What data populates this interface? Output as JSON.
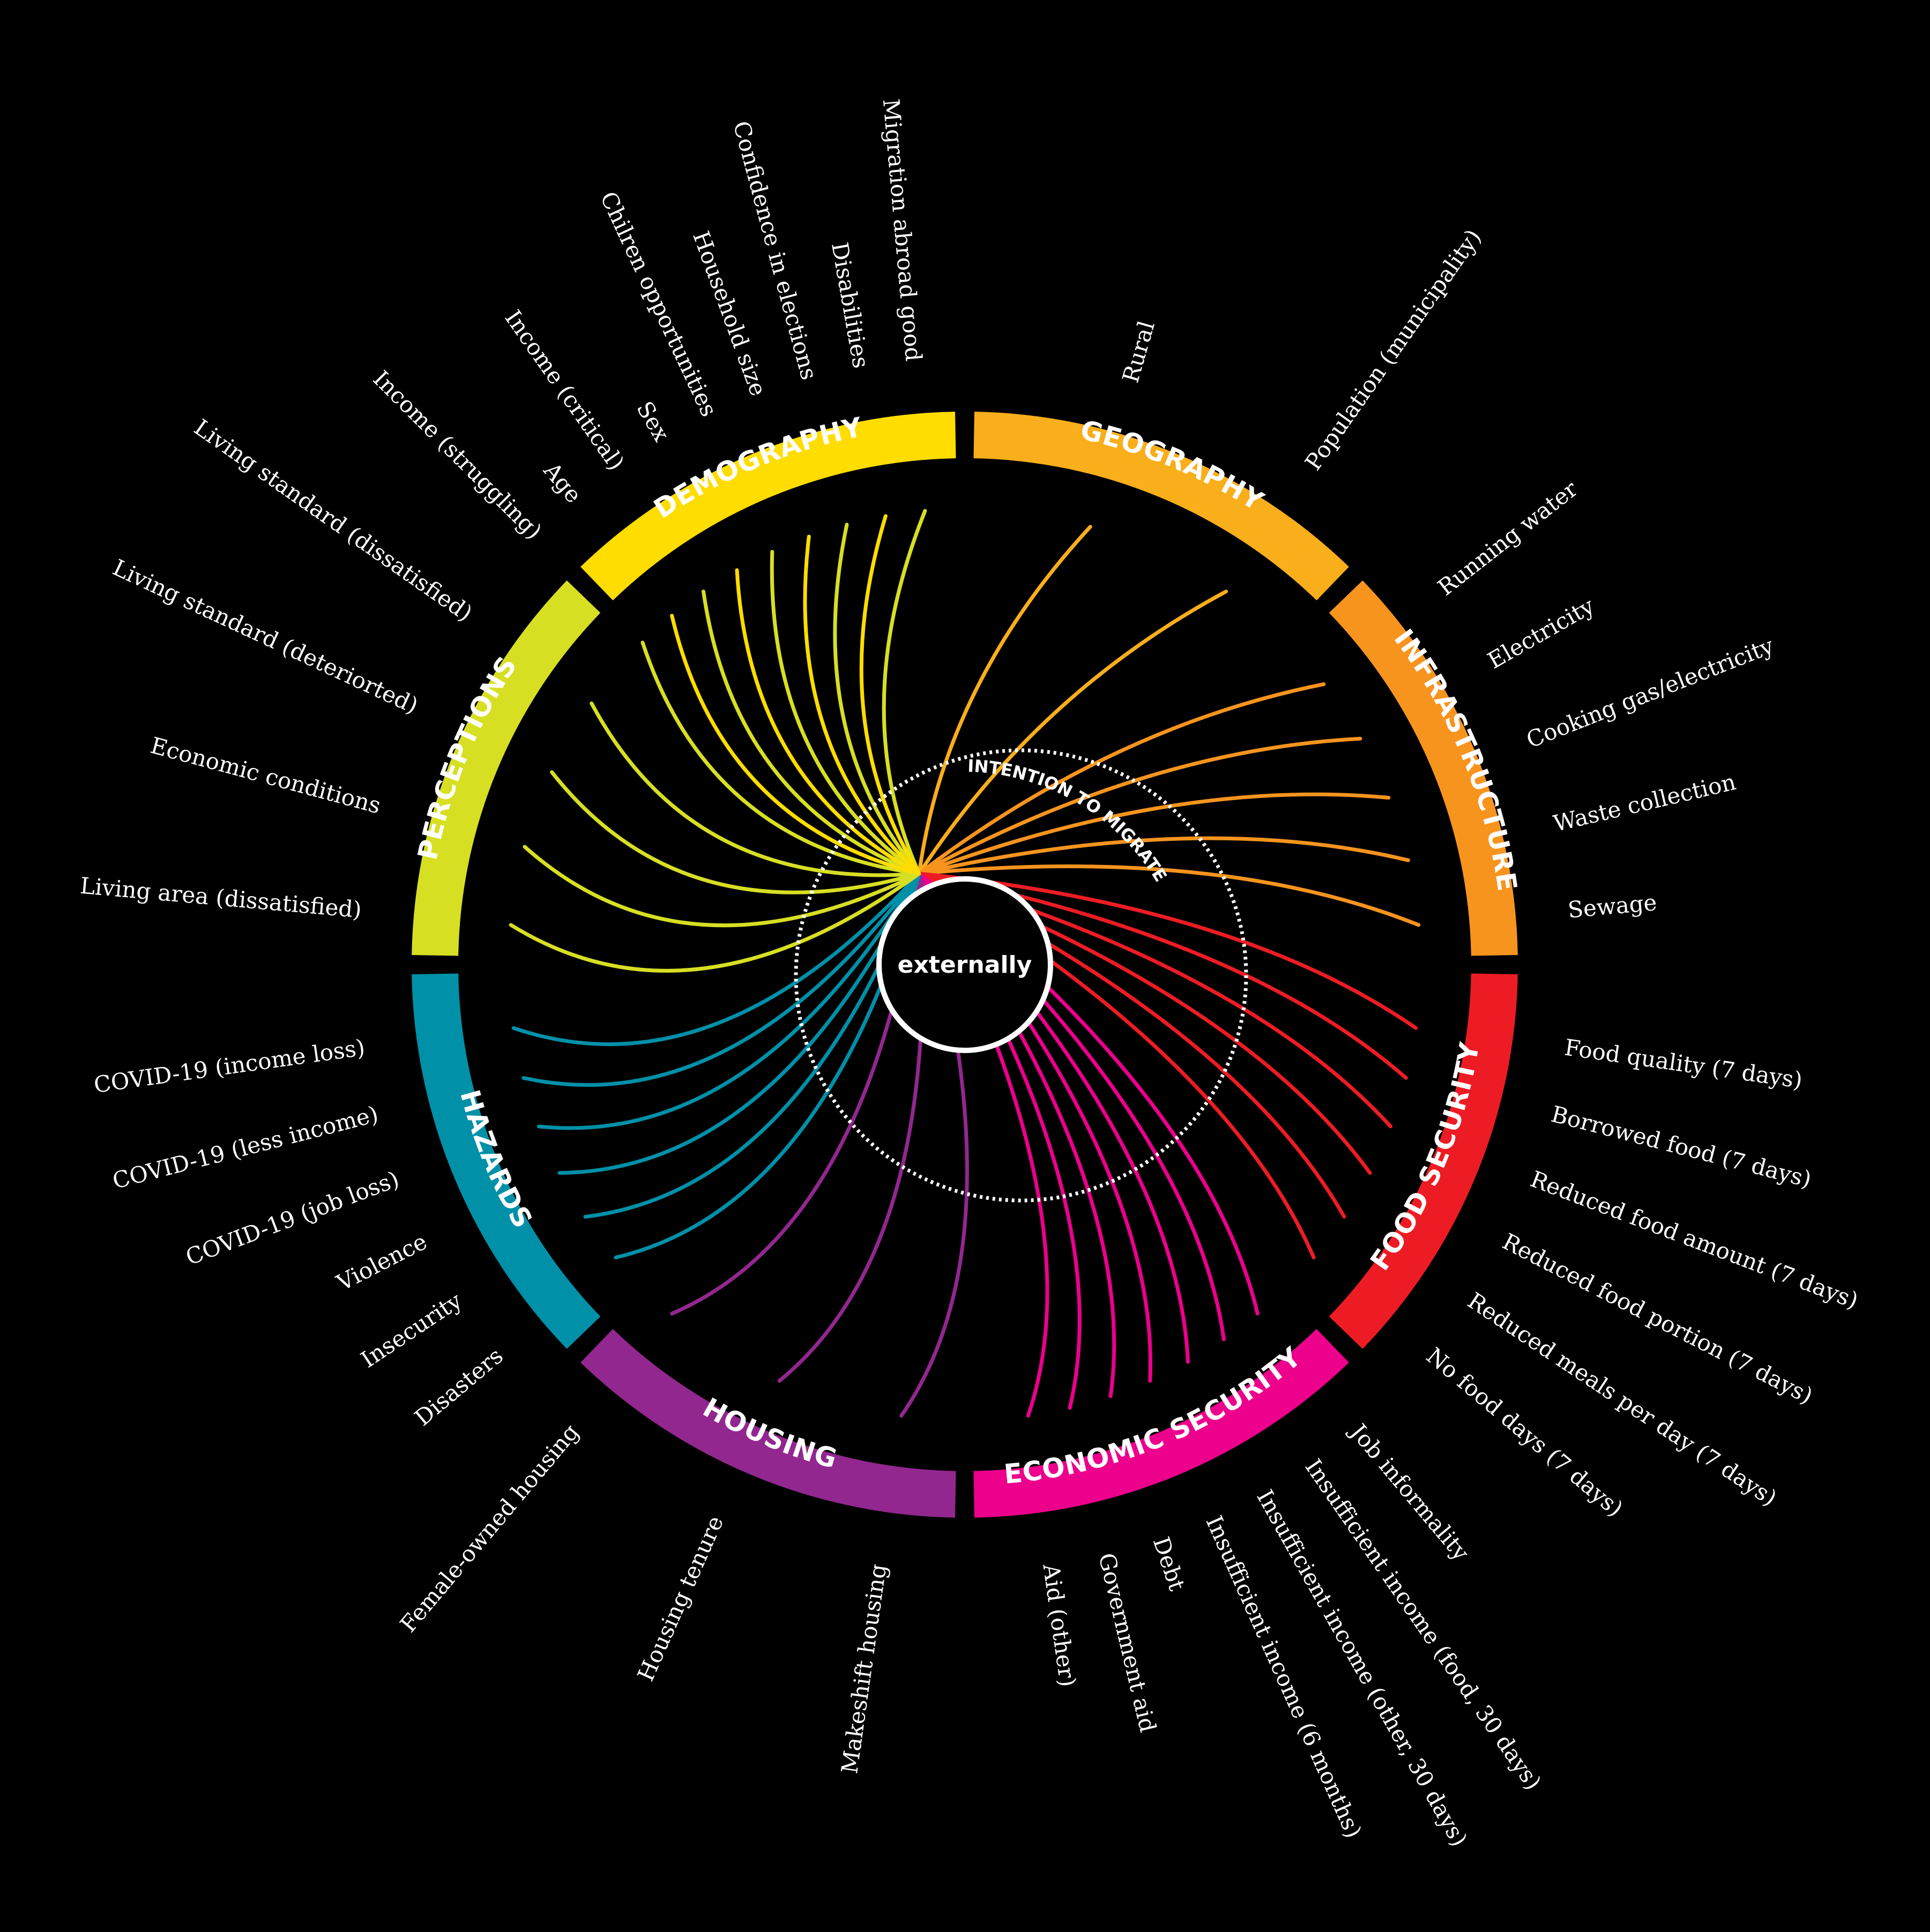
{
  "inner_title": "INTENTION TO MIGRATE",
  "center_label": "externally",
  "categories": [
    {
      "id": "geography",
      "label": "GEOGRAPHY",
      "color": "#F9AE1B",
      "variables": [
        "Rural",
        "Population (municipality)"
      ]
    },
    {
      "id": "infrastructure",
      "label": "INFRASTRUCTURE",
      "color": "#F7941E",
      "variables": [
        "Running water",
        "Electricity",
        "Cooking gas/electricity",
        "Waste collection",
        "Sewage"
      ]
    },
    {
      "id": "food-security",
      "label": "FOOD SECURITY",
      "color": "#ED1C24",
      "variables": [
        "Food quality (7 days)",
        "Borrowed food (7 days)",
        "Reduced food amount (7 days)",
        "Reduced food portion (7 days)",
        "Reduced meals per day (7 days)",
        "No food days (7 days)"
      ]
    },
    {
      "id": "economic-security",
      "label": "ECONOMIC SECURITY",
      "color": "#EC008C",
      "variables": [
        "Job informality",
        "Insufficient income (food, 30 days)",
        "Insufficient income (other, 30 days)",
        "Insufficient income (6 months)",
        "Debt",
        "Government aid",
        "Aid (other)"
      ]
    },
    {
      "id": "housing",
      "label": "HOUSING",
      "color": "#92278F",
      "variables": [
        "Makeshift housing",
        "Housing tenure",
        "Female-owned housing"
      ]
    },
    {
      "id": "hazards",
      "label": "HAZARDS",
      "color": "#0090A8",
      "variables": [
        "Disasters",
        "Insecurity",
        "Violence",
        "COVID-19 (job loss)",
        "COVID-19 (less income)",
        "COVID-19 (income loss)"
      ]
    },
    {
      "id": "perceptions",
      "label": "PERCEPTIONS",
      "color": "#D7DF23",
      "variables": [
        "Living area (dissatisfied)",
        "Economic conditions",
        "Living standard (deteriorted)",
        "Living standard (dissatisfied)",
        "Income (struggling)",
        "Income (critical)",
        "Chilren opportunities",
        "Confidence in elections",
        "Migration abroad good"
      ]
    },
    {
      "id": "demography",
      "label": "DEMOGRAPHY",
      "color": "#FFDD00",
      "variables": [
        "Age",
        "Sex",
        "Household size",
        "Disabilities"
      ]
    }
  ]
}
